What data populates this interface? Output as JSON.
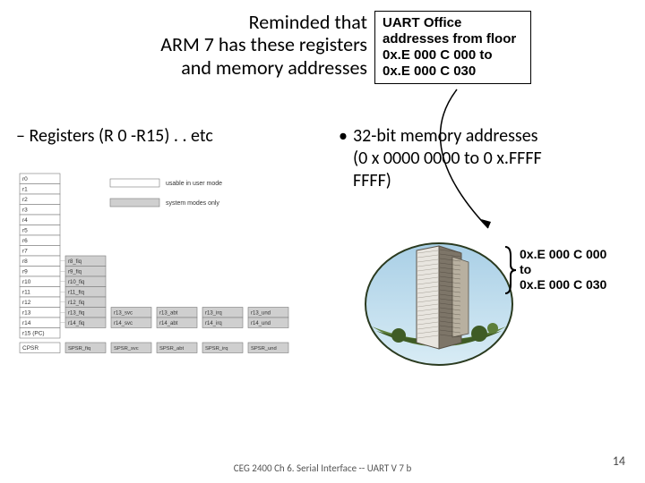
{
  "title": {
    "line1": "Reminded that",
    "line2": "ARM 7 has these registers",
    "line3": "and memory addresses"
  },
  "uart_box": {
    "line1": "UART Office",
    "line2": "addresses from floor",
    "line3": "0x.E 000 C 000 to",
    "line4": "0x.E 000 C 030"
  },
  "left": {
    "registers_bullet": "– Registers (R 0 -R15) . . etc"
  },
  "right": {
    "mem_l1": "32-bit memory addresses",
    "mem_l2": "(0 x 0000 0000 to 0 x.FFFF",
    "mem_l3": "FFFF)"
  },
  "brace": {
    "l1": "0x.E 000 C 000",
    "l2": "to",
    "l3": "0x.E 000 C 030"
  },
  "footer": {
    "text": "CEG 2400 Ch 6. Serial Interface -- UART V 7 b",
    "page": "14"
  },
  "colors": {
    "reg_fill": "#cfcfcf",
    "reg_gap": "#b5b5b5",
    "reg_border": "#7a7a7a",
    "sky_top": "#a9cfe6",
    "sky_bot": "#d8ecf5",
    "grass1": "#5d7f3a",
    "grass2": "#3f5c26",
    "bld_light": "#e8e5df",
    "bld_dark": "#7d7568",
    "bld_mid": "#b8b0a0",
    "bld_line": "#5a5348"
  },
  "diagram": {
    "registers": [
      "r0",
      "r1",
      "r2",
      "r3",
      "r4",
      "r5",
      "r6",
      "r7",
      "r8",
      "r9",
      "r10",
      "r11",
      "r12",
      "r13",
      "r14",
      "r15 (PC)"
    ],
    "fiq": [
      "r8_fiq",
      "r9_fiq",
      "r10_fiq",
      "r11_fiq",
      "r12_fiq",
      "r13_fiq",
      "r14_fiq"
    ],
    "svc": [
      "r13_svc",
      "r14_svc"
    ],
    "abt": [
      "r13_abt",
      "r14_abt"
    ],
    "irq": [
      "r13_irq",
      "r14_irq"
    ],
    "und": [
      "r13_und",
      "r14_und"
    ],
    "cpsr": "CPSR",
    "spsr": [
      "SPSR_fiq",
      "SPSR_svc",
      "SPSR_abt",
      "SPSR_irq",
      "SPSR_und"
    ],
    "legend_user": "usable in user mode",
    "legend_sys": "system modes only"
  }
}
